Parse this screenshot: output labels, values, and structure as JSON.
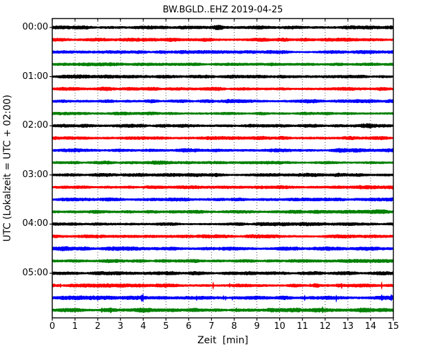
{
  "title": "BW.BGLD..EHZ 2019-04-25",
  "chart_data": {
    "type": "line",
    "subtype": "seismogram-helicorder-dayplot",
    "title": "BW.BGLD..EHZ 2019-04-25",
    "xlabel": "Zeit  [min]",
    "ylabel": "UTC (Lokalzeit = UTC + 02:00)",
    "xlim": [
      0,
      15
    ],
    "minutes_per_line": 15,
    "x_ticks": [
      "0",
      "1",
      "2",
      "3",
      "4",
      "5",
      "6",
      "7",
      "8",
      "9",
      "10",
      "11",
      "12",
      "13",
      "14",
      "15"
    ],
    "y_hour_labels": [
      "00:00",
      "01:00",
      "02:00",
      "03:00",
      "04:00",
      "05:00"
    ],
    "grid": "dotted vertical gridline at every minute, no horizontal grid",
    "legend": "none",
    "colors": {
      "black": "#000000",
      "red": "#ff0000",
      "blue": "#0000ff",
      "green": "#008000"
    },
    "trace_color_cycle": [
      "black",
      "red",
      "blue",
      "green"
    ],
    "traces": [
      {
        "start": "00:00",
        "color": "black",
        "base_amp": 1.0,
        "events": [
          {
            "t": 7.3,
            "amp": 1.0,
            "w": 0.16
          }
        ]
      },
      {
        "start": "00:15",
        "color": "red",
        "base_amp": 1.0,
        "events": []
      },
      {
        "start": "00:30",
        "color": "blue",
        "base_amp": 0.95,
        "events": []
      },
      {
        "start": "00:45",
        "color": "green",
        "base_amp": 0.9,
        "events": []
      },
      {
        "start": "01:00",
        "color": "black",
        "base_amp": 0.95,
        "events": []
      },
      {
        "start": "01:15",
        "color": "red",
        "base_amp": 1.0,
        "events": [
          {
            "t": 2.2,
            "amp": 0.35,
            "w": 0.3
          }
        ]
      },
      {
        "start": "01:30",
        "color": "blue",
        "base_amp": 1.0,
        "events": []
      },
      {
        "start": "01:45",
        "color": "green",
        "base_amp": 0.9,
        "events": []
      },
      {
        "start": "02:00",
        "color": "black",
        "base_amp": 0.95,
        "events": [
          {
            "t": 13.9,
            "amp": 0.8,
            "w": 0.22
          }
        ]
      },
      {
        "start": "02:15",
        "color": "red",
        "base_amp": 1.0,
        "events": [
          {
            "t": 0.8,
            "amp": 0.4,
            "w": 0.5
          }
        ]
      },
      {
        "start": "02:30",
        "color": "blue",
        "base_amp": 1.0,
        "events": [
          {
            "t": 13.0,
            "amp": 0.35,
            "w": 0.4
          }
        ]
      },
      {
        "start": "02:45",
        "color": "green",
        "base_amp": 0.9,
        "events": [
          {
            "t": 4.7,
            "amp": 0.45,
            "w": 0.3
          }
        ]
      },
      {
        "start": "03:00",
        "color": "black",
        "base_amp": 0.95,
        "events": []
      },
      {
        "start": "03:15",
        "color": "red",
        "base_amp": 1.0,
        "events": [
          {
            "t": 4.5,
            "amp": 0.45,
            "w": 0.3
          }
        ]
      },
      {
        "start": "03:30",
        "color": "blue",
        "base_amp": 0.95,
        "events": []
      },
      {
        "start": "03:45",
        "color": "green",
        "base_amp": 0.95,
        "events": [
          {
            "t": 10.7,
            "amp": 0.45,
            "w": 0.3
          },
          {
            "t": 14.3,
            "amp": 0.85,
            "w": 0.35
          }
        ]
      },
      {
        "start": "04:00",
        "color": "black",
        "base_amp": 0.95,
        "events": []
      },
      {
        "start": "04:15",
        "color": "red",
        "base_amp": 1.0,
        "events": []
      },
      {
        "start": "04:30",
        "color": "blue",
        "base_amp": 1.05,
        "events": [
          {
            "t": 0.8,
            "amp": 0.5,
            "w": 0.4
          }
        ]
      },
      {
        "start": "04:45",
        "color": "green",
        "base_amp": 0.95,
        "events": []
      },
      {
        "start": "05:00",
        "color": "black",
        "base_amp": 1.0,
        "events": [
          {
            "t": 14.4,
            "amp": 0.55,
            "w": 0.3
          }
        ]
      },
      {
        "start": "05:15",
        "color": "red",
        "base_amp": 1.0,
        "spiky": true,
        "events": [
          {
            "t": 11.6,
            "amp": 0.8,
            "w": 0.08
          },
          {
            "t": 12.6,
            "amp": 0.8,
            "w": 0.08
          }
        ]
      },
      {
        "start": "05:30",
        "color": "blue",
        "base_amp": 1.1,
        "spiky": true,
        "events": []
      },
      {
        "start": "05:45",
        "color": "green",
        "base_amp": 1.1,
        "spiky": true,
        "events": [
          {
            "t": 4.3,
            "amp": 0.5,
            "w": 0.2
          },
          {
            "t": 13.9,
            "amp": 0.5,
            "w": 0.2
          }
        ]
      }
    ]
  }
}
